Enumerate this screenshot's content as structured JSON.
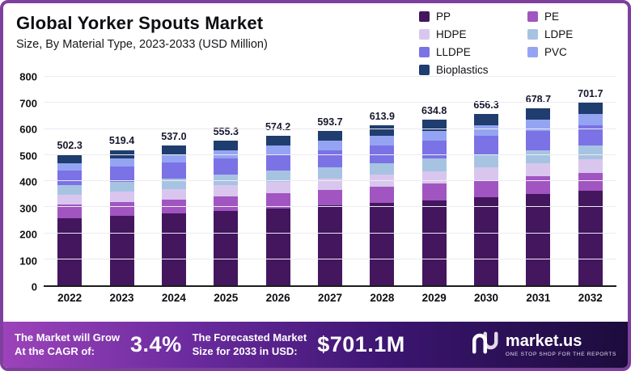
{
  "header": {
    "title": "Global Yorker Spouts Market",
    "subtitle": "Size, By Material Type, 2023-2033 (USD Million)"
  },
  "colors": {
    "card_border": "#7e3f9d",
    "banner_gradient_left": "#9c43ba",
    "banner_gradient_right": "#1c0c3c",
    "axis_line": "#1c1c1c"
  },
  "chart_data": {
    "type": "bar",
    "stacked": true,
    "title": "Global Yorker Spouts Market",
    "subtitle": "Size, By Material Type, 2023-2033 (USD Million)",
    "xlabel": "",
    "ylabel": "",
    "ylim": [
      0,
      800
    ],
    "yticks": [
      0,
      100,
      200,
      300,
      400,
      500,
      600,
      700,
      800
    ],
    "grid": true,
    "legend_position": "top-right",
    "categories": [
      "2022",
      "2023",
      "2024",
      "2025",
      "2026",
      "2027",
      "2028",
      "2029",
      "2030",
      "2031",
      "2032"
    ],
    "totals": [
      "502.3",
      "519.4",
      "537.0",
      "555.3",
      "574.2",
      "593.7",
      "613.9",
      "634.8",
      "656.3",
      "678.7",
      "701.7"
    ],
    "series": [
      {
        "name": "PP",
        "color": "#44165e",
        "values": [
          258.7,
          267.5,
          276.6,
          286.0,
          295.7,
          305.8,
          316.2,
          326.9,
          338.0,
          349.5,
          361.4
        ]
      },
      {
        "name": "PE",
        "color": "#a155c0",
        "values": [
          50.2,
          51.9,
          53.7,
          55.5,
          57.4,
          59.4,
          61.4,
          63.5,
          65.6,
          67.9,
          70.2
        ]
      },
      {
        "name": "HDPE",
        "color": "#d9c6ee",
        "values": [
          37.7,
          39.0,
          40.3,
          41.6,
          43.1,
          44.5,
          46.0,
          47.6,
          49.2,
          50.9,
          52.6
        ]
      },
      {
        "name": "LDPE",
        "color": "#a7c3e2",
        "values": [
          37.7,
          39.0,
          40.3,
          41.6,
          43.1,
          44.5,
          46.0,
          47.6,
          49.2,
          50.9,
          52.6
        ]
      },
      {
        "name": "LLDPE",
        "color": "#7b72e6",
        "values": [
          55.3,
          57.1,
          59.1,
          61.1,
          63.2,
          65.3,
          67.5,
          69.8,
          72.2,
          74.7,
          77.2
        ]
      },
      {
        "name": "PVC",
        "color": "#95a4f2",
        "values": [
          30.1,
          31.2,
          32.2,
          33.3,
          34.5,
          35.6,
          36.8,
          38.1,
          39.4,
          40.7,
          42.1
        ]
      },
      {
        "name": "Bioplastics",
        "color": "#1f3d6e",
        "values": [
          32.6,
          33.8,
          34.9,
          36.1,
          37.3,
          38.6,
          39.9,
          41.3,
          42.7,
          44.1,
          45.6
        ]
      }
    ]
  },
  "footer": {
    "growth_label": "The Market will Grow\nAt the CAGR of:",
    "cagr_value": "3.4%",
    "forecast_label": "The Forecasted Market\nSize for 2033 in USD:",
    "forecast_value": "$701.1M",
    "brand": "market.us",
    "tagline": "ONE STOP SHOP FOR THE REPORTS"
  }
}
